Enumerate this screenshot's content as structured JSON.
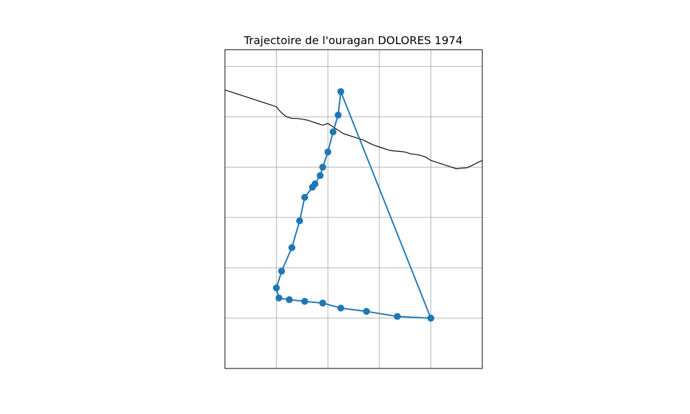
{
  "title": "Trajectoire de l'ouragan DOLORES 1974",
  "colors": {
    "track": "#1f77b4",
    "coastline": "#000000",
    "grid": "#b0b0b0",
    "frame": "#000000"
  },
  "chart_data": {
    "type": "line",
    "title": "Trajectoire de l'ouragan DOLORES 1974",
    "xlabel": "",
    "ylabel": "",
    "grid": true,
    "legend": "none",
    "xlim": [
      -117.0,
      -112.0
    ],
    "ylim": [
      10.0,
      19.5
    ],
    "gridlines_x": [
      -116,
      -115,
      -114,
      -113,
      -112
    ],
    "gridlines_y": [
      11.5,
      13.0,
      14.5,
      16.0,
      17.5,
      19.0
    ],
    "series": [
      {
        "x": [
          -113.0,
          -113.65,
          -114.25,
          -114.75,
          -115.1,
          -115.45,
          -115.75,
          -115.95,
          -116.0,
          -115.9,
          -115.7,
          -115.55,
          -115.45,
          -115.3,
          -115.25,
          -115.15,
          -115.1,
          -115.0,
          -114.9,
          -114.8,
          -114.75,
          -113.0
        ],
        "y": [
          11.5,
          11.55,
          11.7,
          11.8,
          11.95,
          12.0,
          12.05,
          12.1,
          12.4,
          12.9,
          13.6,
          14.4,
          15.1,
          15.4,
          15.5,
          15.75,
          16.0,
          16.45,
          17.05,
          17.55,
          18.25,
          11.5
        ]
      }
    ],
    "coastline": {
      "x": [
        -117.0,
        -116.8,
        -116.6,
        -116.4,
        -116.2,
        -116.0,
        -115.95,
        -115.9,
        -115.85,
        -115.8,
        -115.7,
        -115.6,
        -115.5,
        -115.4,
        -115.3,
        -115.2,
        -115.1,
        -115.0,
        -114.9,
        -114.8,
        -114.7,
        -114.6,
        -114.5,
        -114.4,
        -114.3,
        -114.2,
        -114.1,
        -114.0,
        -113.9,
        -113.8,
        -113.7,
        -113.6,
        -113.5,
        -113.4,
        -113.3,
        -113.2,
        -113.1,
        -113.0,
        -112.9,
        -112.8,
        -112.7,
        -112.6,
        -112.5,
        -112.4,
        -112.3,
        -112.2,
        -112.1,
        -112.0
      ],
      "y": [
        18.3,
        18.2,
        18.1,
        18.0,
        17.9,
        17.8,
        17.7,
        17.62,
        17.55,
        17.5,
        17.45,
        17.45,
        17.43,
        17.4,
        17.35,
        17.3,
        17.25,
        17.3,
        17.2,
        17.1,
        17.0,
        16.95,
        16.9,
        16.85,
        16.8,
        16.72,
        16.65,
        16.6,
        16.55,
        16.5,
        16.48,
        16.47,
        16.45,
        16.4,
        16.38,
        16.35,
        16.3,
        16.2,
        16.15,
        16.1,
        16.05,
        16.0,
        15.95,
        15.97,
        15.98,
        16.05,
        16.13,
        16.2
      ]
    }
  }
}
